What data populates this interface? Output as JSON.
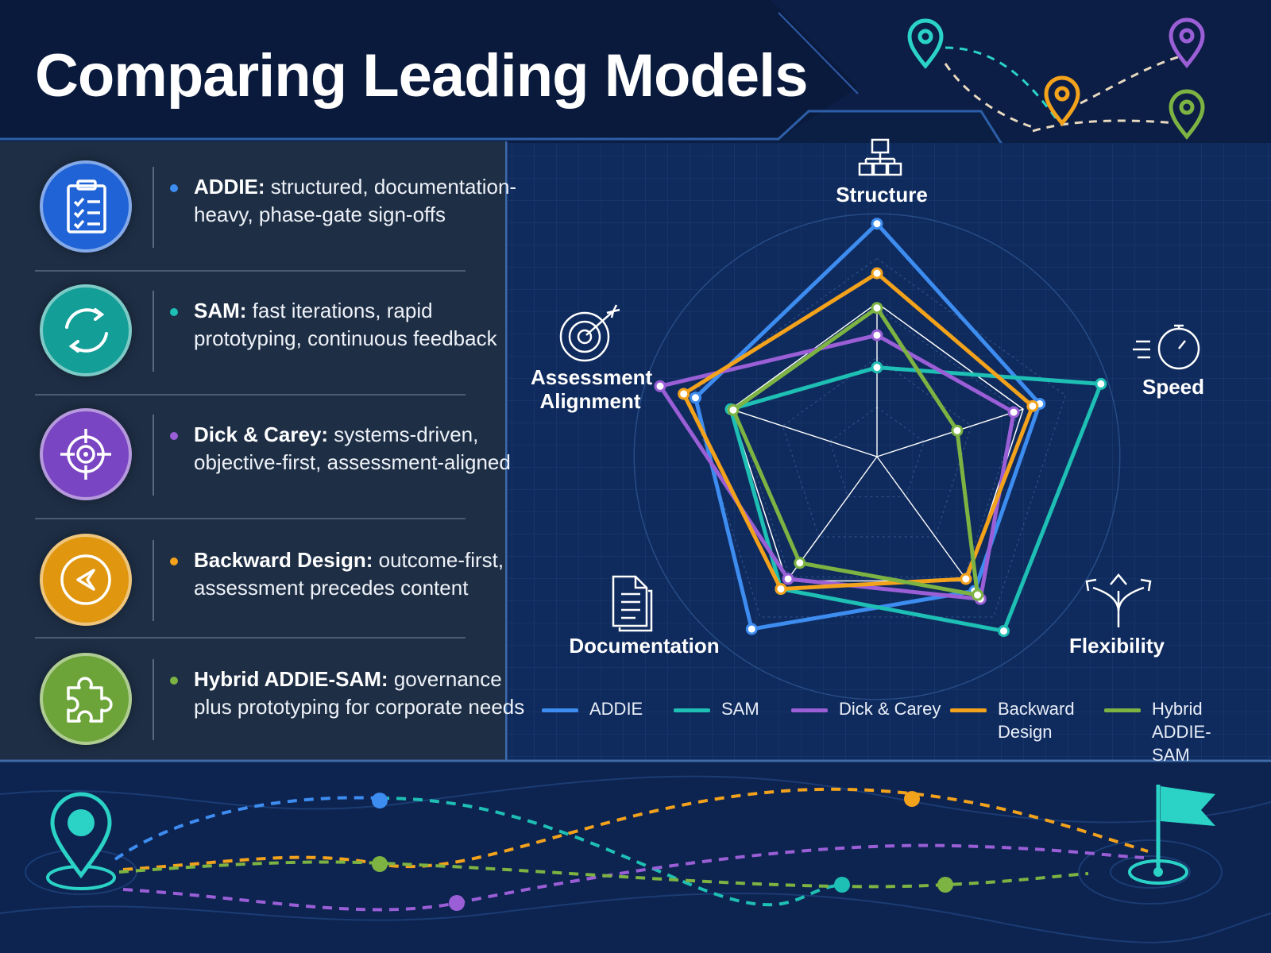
{
  "title": "Comparing Leading Models",
  "models": [
    {
      "name": "ADDIE:",
      "desc": " structured, documentation-heavy, phase-gate sign-offs",
      "color": "#3d8cf0",
      "icon": "clipboard-checklist-icon"
    },
    {
      "name": "SAM:",
      "desc": " fast iterations, rapid prototyping, continuous feedback",
      "color": "#1ebfb4",
      "icon": "refresh-cycle-icon"
    },
    {
      "name": "Dick & Carey:",
      "desc": " systems-driven, objective-first, assessment-aligned",
      "color": "#9a5fd6",
      "icon": "crosshair-target-icon"
    },
    {
      "name": "Backward Design:",
      "desc": " outcome-first, assessment precedes content",
      "color": "#f3a21c",
      "icon": "back-arrow-icon"
    },
    {
      "name": "Hybrid ADDIE-SAM:",
      "desc": " governance plus prototyping for corporate needs",
      "color": "#7cb342",
      "icon": "puzzle-piece-icon"
    }
  ],
  "axis_icons": [
    "org-chart-icon",
    "stopwatch-icon",
    "split-arrows-icon",
    "documents-icon",
    "target-arrow-icon"
  ],
  "chart_data": {
    "type": "radar",
    "axes": [
      "Structure",
      "Speed",
      "Flexibility",
      "Documentation",
      "Assessment Alignment"
    ],
    "range": [
      0,
      10
    ],
    "series": [
      {
        "name": "ADDIE",
        "values": [
          9.4,
          6.9,
          6.7,
          8.6,
          7.7
        ],
        "color": "#3d8cf0"
      },
      {
        "name": "SAM",
        "values": [
          3.6,
          9.5,
          8.7,
          6.6,
          6.2
        ],
        "color": "#1ebfb4"
      },
      {
        "name": "Dick & Carey",
        "values": [
          4.9,
          5.8,
          7.1,
          6.1,
          9.2
        ],
        "color": "#9a5fd6"
      },
      {
        "name": "Backward Design",
        "values": [
          7.4,
          6.6,
          6.1,
          6.6,
          8.2
        ],
        "color": "#f3a21c"
      },
      {
        "name": "Hybrid ADDIE-SAM",
        "values": [
          6.0,
          3.4,
          6.9,
          5.3,
          6.1
        ],
        "color": "#7cb342"
      }
    ],
    "legend_labels": [
      "ADDIE",
      "SAM",
      "Dick & Carey",
      "Backward Design",
      "Hybrid ADDIE-SAM"
    ],
    "legend_position": "bottom",
    "grid": true
  }
}
